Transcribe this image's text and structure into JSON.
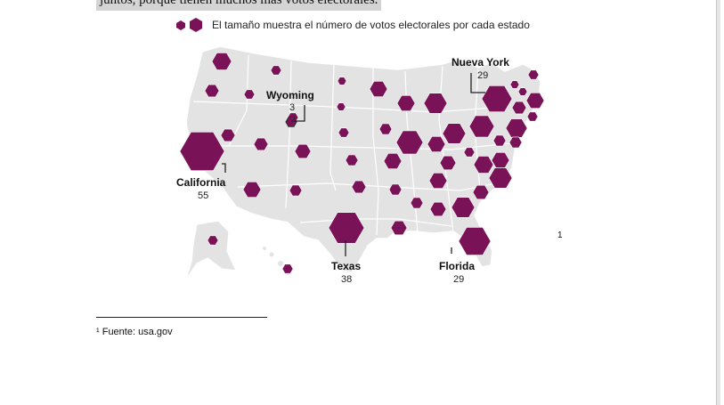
{
  "document": {
    "top_text": "juntos, porque tienen muchos más votos electorales.",
    "footnote_ref": "1",
    "footnote_text": "¹ Fuente: usa.gov"
  },
  "figure": {
    "legend": "El tamaño muestra el número de votos electorales por cada estado",
    "hex_color": "#7a1257",
    "callouts": {
      "california": {
        "name": "California",
        "votes": "55"
      },
      "wyoming": {
        "name": "Wyoming",
        "votes": "3"
      },
      "texas": {
        "name": "Texas",
        "votes": "38"
      },
      "nueva_york": {
        "name": "Nueva York",
        "votes": "29"
      },
      "florida": {
        "name": "Florida",
        "votes": "29"
      }
    }
  }
}
